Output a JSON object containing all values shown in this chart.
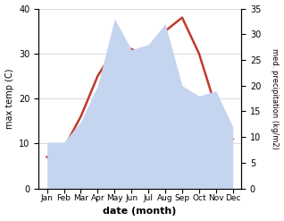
{
  "months": [
    "Jan",
    "Feb",
    "Mar",
    "Apr",
    "May",
    "Jun",
    "Jul",
    "Aug",
    "Sep",
    "Oct",
    "Nov",
    "Dec"
  ],
  "temperature": [
    7,
    9,
    16,
    25,
    31,
    31,
    29,
    35,
    38,
    30,
    18,
    11
  ],
  "precipitation": [
    9,
    9,
    13,
    20,
    33,
    27,
    28,
    32,
    20,
    18,
    19,
    12
  ],
  "temp_color": "#c0392b",
  "precip_fill_color": "#c5d4ef",
  "temp_ylim": [
    0,
    40
  ],
  "precip_ylim": [
    0,
    35
  ],
  "temp_yticks": [
    0,
    10,
    20,
    30,
    40
  ],
  "precip_yticks": [
    0,
    5,
    10,
    15,
    20,
    25,
    30,
    35
  ],
  "xlabel": "date (month)",
  "ylabel_left": "max temp (C)",
  "ylabel_right": "med. precipitation (kg/m2)",
  "bg_color": "#ffffff",
  "grid_color": "#cccccc"
}
